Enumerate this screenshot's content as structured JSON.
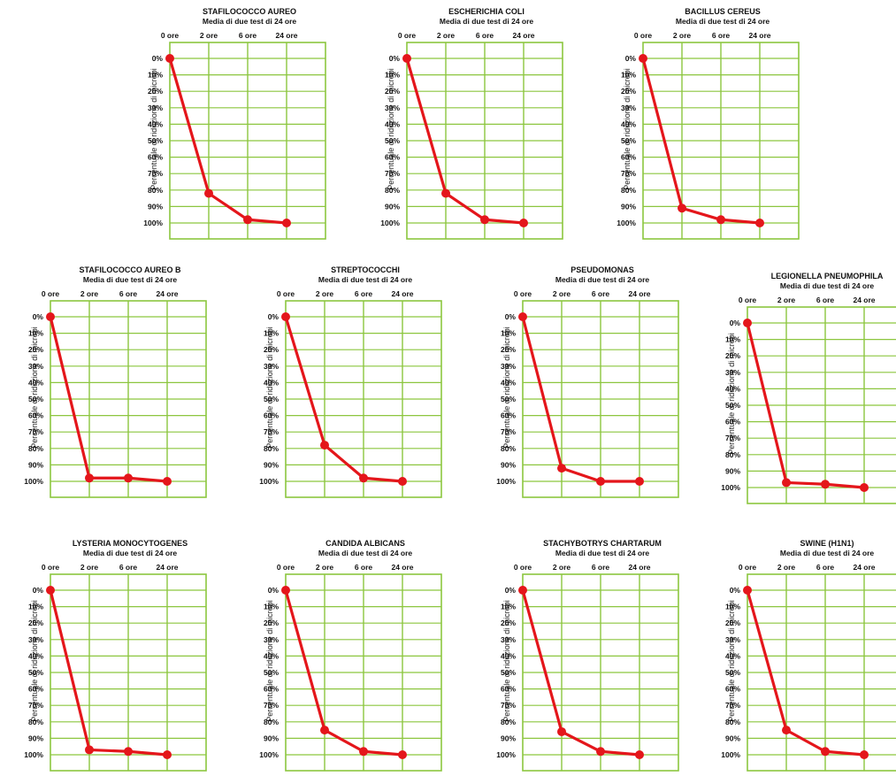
{
  "colors": {
    "grid": "#8cc63f",
    "line": "#e4161b",
    "text": "#111111"
  },
  "common": {
    "subtitle": "Media di due test di 24 ore",
    "ylabel": "Percentuale di riduzione di microbi",
    "x_ticks": [
      "0 ore",
      "2 ore",
      "6 ore",
      "24 ore"
    ],
    "y_ticks": [
      "0%",
      "10%",
      "20%",
      "30%",
      "40%",
      "50%",
      "60%",
      "70%",
      "80%",
      "90%",
      "100%"
    ]
  },
  "chart_data": [
    {
      "type": "line",
      "title": "STAFILOCOCCO AUREO",
      "subtitle": "Media di due test di 24 ore",
      "xlabel": "",
      "ylabel": "Percentuale di riduzione di microbi",
      "x": [
        "0 ore",
        "2 ore",
        "6 ore",
        "24 ore"
      ],
      "series": [
        {
          "values": [
            0,
            82,
            98,
            100
          ]
        }
      ],
      "ylim": [
        0,
        100
      ],
      "y_inverted": true,
      "grid": true
    },
    {
      "type": "line",
      "title": "ESCHERICHIA COLI",
      "subtitle": "Media di due test di 24 ore",
      "xlabel": "",
      "ylabel": "Percentuale di riduzione di microbi",
      "x": [
        "0 ore",
        "2 ore",
        "6 ore",
        "24 ore"
      ],
      "series": [
        {
          "values": [
            0,
            82,
            98,
            100
          ]
        }
      ],
      "ylim": [
        0,
        100
      ],
      "y_inverted": true,
      "grid": true
    },
    {
      "type": "line",
      "title": "BACILLUS CEREUS",
      "subtitle": "Media di due test di 24 ore",
      "xlabel": "",
      "ylabel": "Percentuale di riduzione di microbi",
      "x": [
        "0 ore",
        "2 ore",
        "6 ore",
        "24 ore"
      ],
      "series": [
        {
          "values": [
            0,
            91,
            98,
            100
          ]
        }
      ],
      "ylim": [
        0,
        100
      ],
      "y_inverted": true,
      "grid": true
    },
    {
      "type": "line",
      "title": "STAFILOCOCCO AUREO B",
      "subtitle": "Media di due test di 24 ore",
      "xlabel": "",
      "ylabel": "Percentuale di riduzione di microbi",
      "x": [
        "0 ore",
        "2 ore",
        "6 ore",
        "24 ore"
      ],
      "series": [
        {
          "values": [
            0,
            98,
            98,
            100
          ]
        }
      ],
      "ylim": [
        0,
        100
      ],
      "y_inverted": true,
      "grid": true
    },
    {
      "type": "line",
      "title": "STREPTOCOCCHI",
      "subtitle": "Media di due test di 24 ore",
      "xlabel": "",
      "ylabel": "Percentuale di riduzione di microbi",
      "x": [
        "0 ore",
        "2 ore",
        "6 ore",
        "24 ore"
      ],
      "series": [
        {
          "values": [
            0,
            78,
            98,
            100
          ]
        }
      ],
      "ylim": [
        0,
        100
      ],
      "y_inverted": true,
      "grid": true
    },
    {
      "type": "line",
      "title": "PSEUDOMONAS",
      "subtitle": "Media di due test di 24 ore",
      "xlabel": "",
      "ylabel": "Percentuale di riduzione di microbi",
      "x": [
        "0 ore",
        "2 ore",
        "6 ore",
        "24 ore"
      ],
      "series": [
        {
          "values": [
            0,
            92,
            100,
            100
          ]
        }
      ],
      "ylim": [
        0,
        100
      ],
      "y_inverted": true,
      "grid": true
    },
    {
      "type": "line",
      "title": "LEGIONELLA PNEUMOPHILA",
      "subtitle": "Media di due test di 24 ore",
      "xlabel": "",
      "ylabel": "Percentuale di riduzione di microbi",
      "x": [
        "0 ore",
        "2 ore",
        "6 ore",
        "24 ore"
      ],
      "series": [
        {
          "values": [
            0,
            97,
            98,
            100
          ]
        }
      ],
      "ylim": [
        0,
        100
      ],
      "y_inverted": true,
      "grid": true
    },
    {
      "type": "line",
      "title": "LYSTERIA MONOCYTOGENES",
      "subtitle": "Media di due test di 24 ore",
      "xlabel": "",
      "ylabel": "Percentuale di riduzione di microbi",
      "x": [
        "0 ore",
        "2 ore",
        "6 ore",
        "24 ore"
      ],
      "series": [
        {
          "values": [
            0,
            97,
            98,
            100
          ]
        }
      ],
      "ylim": [
        0,
        100
      ],
      "y_inverted": true,
      "grid": true
    },
    {
      "type": "line",
      "title": "CANDIDA ALBICANS",
      "subtitle": "Media di due test di 24 ore",
      "xlabel": "",
      "ylabel": "Percentuale di riduzione di microbi",
      "x": [
        "0 ore",
        "2 ore",
        "6 ore",
        "24 ore"
      ],
      "series": [
        {
          "values": [
            0,
            85,
            98,
            100
          ]
        }
      ],
      "ylim": [
        0,
        100
      ],
      "y_inverted": true,
      "grid": true
    },
    {
      "type": "line",
      "title": "STACHYBOTRYS CHARTARUM",
      "subtitle": "Media di due test di 24 ore",
      "xlabel": "",
      "ylabel": "Percentuale di riduzione di microbi",
      "x": [
        "0 ore",
        "2 ore",
        "6 ore",
        "24 ore"
      ],
      "series": [
        {
          "values": [
            0,
            86,
            98,
            100
          ]
        }
      ],
      "ylim": [
        0,
        100
      ],
      "y_inverted": true,
      "grid": true
    },
    {
      "type": "line",
      "title": "SWINE (H1N1)",
      "subtitle": "Media di due test di 24 ore",
      "xlabel": "",
      "ylabel": "Percentuale di riduzione di microbi",
      "x": [
        "0 ore",
        "2 ore",
        "6 ore",
        "24 ore"
      ],
      "series": [
        {
          "values": [
            0,
            85,
            98,
            100
          ]
        }
      ],
      "ylim": [
        0,
        100
      ],
      "y_inverted": true,
      "grid": true
    }
  ]
}
